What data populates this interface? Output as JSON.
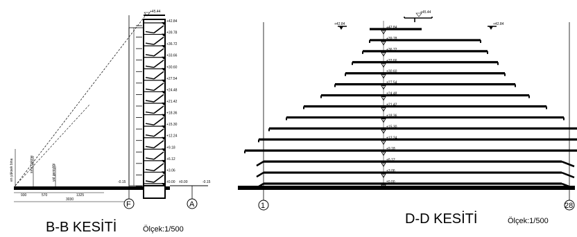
{
  "sections": {
    "bb": {
      "title": "B-B KESİTİ",
      "scale": "Ölçek:1/500",
      "axis_left": "F",
      "axis_right": "A",
      "top_level": "+45.44",
      "level_marks": [
        "+42.84",
        "+39.78",
        "+36.72",
        "+33.66",
        "+30.60",
        "+27.54",
        "+24.48",
        "+21.42",
        "+18.36",
        "+15.30",
        "+12.24",
        "+9.18",
        "+6.12",
        "+3.06",
        "±0.00"
      ],
      "ground_left": "-0.15",
      "ground_mid": "±0.00",
      "ground_right": "-0.15",
      "dims": [
        "930",
        "570",
        "1325",
        "3030"
      ],
      "vertical_notes": [
        "en yüksek bina",
        "sınır çekme",
        "yol genişliği"
      ]
    },
    "dd": {
      "title": "D-D KESİTİ",
      "scale": "Ölçek:1/500",
      "axis_left": "1",
      "axis_right": "28",
      "top_level": "+45.44",
      "roof_left": "+42.84",
      "roof_right": "+42.84",
      "levels": [
        "+42.84",
        "+39.78",
        "+36.72",
        "+33.66",
        "+30.60",
        "+27.54",
        "+24.48",
        "+21.42",
        "+18.36",
        "+15.30",
        "+12.24",
        "+9.18",
        "+6.12",
        "+3.06",
        "±0.00"
      ]
    }
  }
}
